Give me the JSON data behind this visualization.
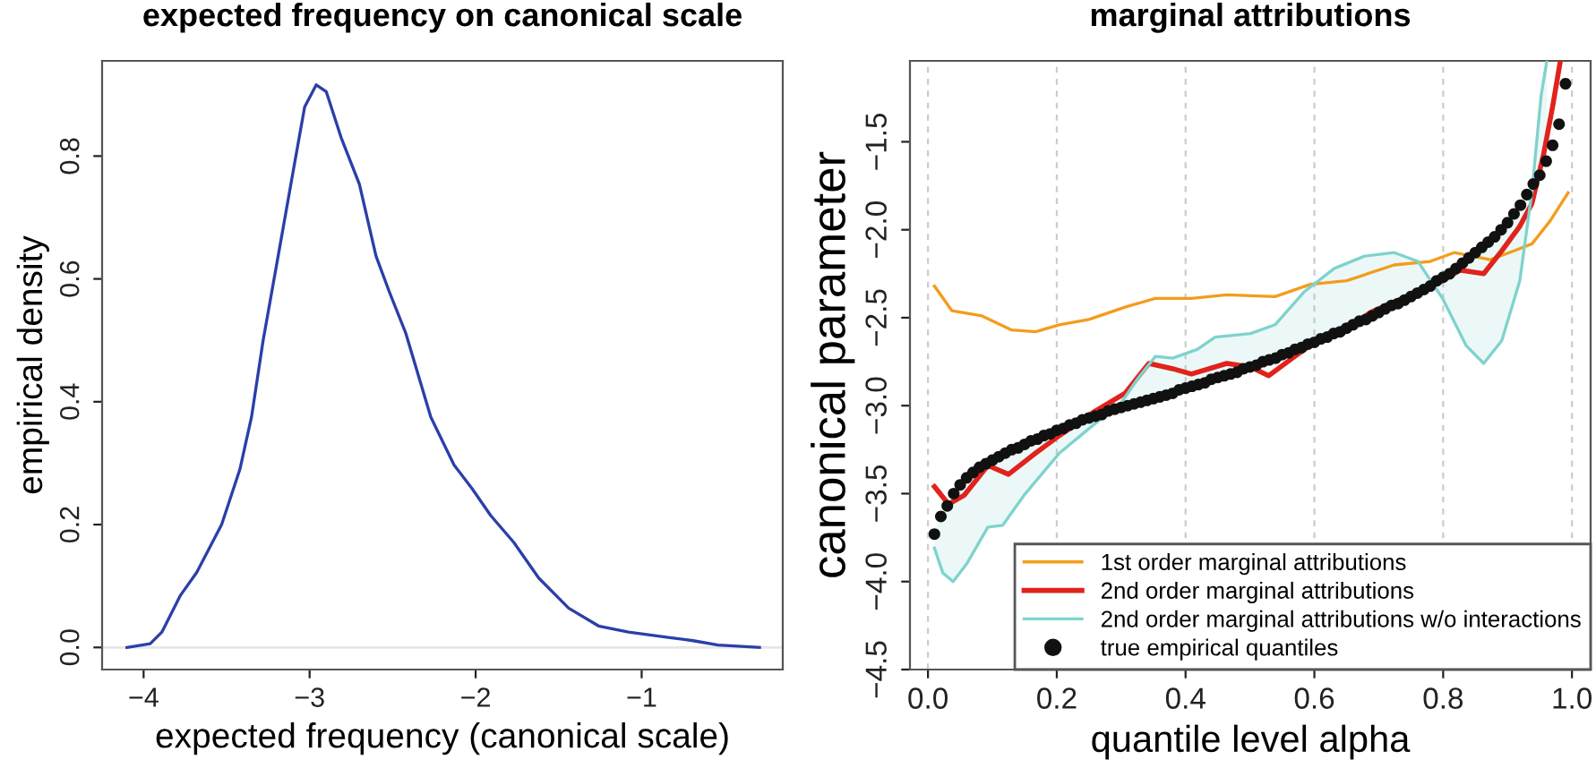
{
  "chart_data": [
    {
      "type": "line",
      "title": "expected frequency on canonical scale",
      "xlabel": "expected frequency (canonical scale)",
      "ylabel": "empirical density",
      "color": "#2b3fa8",
      "x": [
        -4.1,
        -3.96,
        -3.89,
        -3.78,
        -3.68,
        -3.53,
        -3.42,
        -3.35,
        -3.28,
        -3.17,
        -3.1,
        -3.03,
        -2.96,
        -2.9,
        -2.81,
        -2.7,
        -2.6,
        -2.52,
        -2.42,
        -2.27,
        -2.13,
        -2.02,
        -1.91,
        -1.77,
        -1.62,
        -1.44,
        -1.26,
        -1.08,
        -0.83,
        -0.69,
        -0.54,
        -0.29
      ],
      "values": [
        0,
        0.006,
        0.025,
        0.084,
        0.122,
        0.2,
        0.29,
        0.375,
        0.5,
        0.667,
        0.774,
        0.88,
        0.916,
        0.905,
        0.83,
        0.754,
        0.637,
        0.579,
        0.511,
        0.375,
        0.297,
        0.258,
        0.215,
        0.171,
        0.113,
        0.064,
        0.035,
        0.025,
        0.016,
        0.011,
        0.004,
        0
      ],
      "xlim": [
        -4.25,
        -0.15
      ],
      "xticks": [
        {
          "value": -4,
          "label": "−4"
        },
        {
          "value": -3,
          "label": "−3"
        },
        {
          "value": -2,
          "label": "−2"
        },
        {
          "value": -1,
          "label": "−1"
        }
      ],
      "ylim": [
        -0.036,
        0.955
      ],
      "yticks": [
        {
          "value": 0,
          "label": "0.0"
        },
        0.2,
        0.4,
        0.6,
        0.8
      ],
      "ref_lines": [
        {
          "axis": "y",
          "value": 0,
          "color": "#e6e6e6"
        }
      ],
      "grid": false,
      "legend": false
    },
    {
      "type": "line",
      "title": "marginal attributions",
      "xlabel": "quantile level alpha",
      "ylabel": "canonical parameter",
      "xlim": [
        -0.028,
        1.029
      ],
      "xticks": [
        {
          "value": 0,
          "label": "0.0"
        },
        0.2,
        0.4,
        0.6,
        0.8,
        {
          "value": 1,
          "label": "1.0"
        }
      ],
      "ylim": [
        -4.5,
        -1.04
      ],
      "yticks": [
        {
          "value": -4.5,
          "label": "−4.5"
        },
        {
          "value": -4,
          "label": "−4.0"
        },
        {
          "value": -3.5,
          "label": "−3.5"
        },
        {
          "value": -3,
          "label": "−3.0"
        },
        {
          "value": -2.5,
          "label": "−2.5"
        },
        {
          "value": -2,
          "label": "−2.0"
        },
        {
          "value": -1.5,
          "label": "−1.5"
        }
      ],
      "grid": "x",
      "legend": "bottom right",
      "series": [
        {
          "name": "1st order marginal attributions",
          "type": "line",
          "color": "#f39c1c",
          "x": [
            0.01,
            0.037,
            0.084,
            0.13,
            0.167,
            0.204,
            0.25,
            0.306,
            0.353,
            0.409,
            0.464,
            0.539,
            0.594,
            0.65,
            0.724,
            0.78,
            0.817,
            0.873,
            0.91,
            0.938,
            0.966,
            0.994
          ],
          "values": [
            -2.32,
            -2.46,
            -2.49,
            -2.57,
            -2.58,
            -2.54,
            -2.51,
            -2.44,
            -2.39,
            -2.39,
            -2.37,
            -2.38,
            -2.31,
            -2.29,
            -2.2,
            -2.18,
            -2.13,
            -2.17,
            -2.12,
            -2.08,
            -1.95,
            -1.79
          ]
        },
        {
          "name": "2nd order marginal attributions",
          "type": "line",
          "color": "#e0231c",
          "x": [
            0.01,
            0.032,
            0.056,
            0.093,
            0.125,
            0.167,
            0.204,
            0.26,
            0.306,
            0.343,
            0.38,
            0.409,
            0.464,
            0.501,
            0.529,
            0.566,
            0.604,
            0.65,
            0.687,
            0.724,
            0.761,
            0.799,
            0.826,
            0.863,
            0.891,
            0.919,
            0.938,
            0.956,
            0.97,
            0.982
          ],
          "values": [
            -3.46,
            -3.56,
            -3.51,
            -3.34,
            -3.39,
            -3.27,
            -3.17,
            -3.03,
            -2.93,
            -2.76,
            -2.79,
            -2.82,
            -2.76,
            -2.78,
            -2.83,
            -2.73,
            -2.63,
            -2.57,
            -2.47,
            -2.41,
            -2.35,
            -2.29,
            -2.23,
            -2.25,
            -2.12,
            -1.98,
            -1.85,
            -1.57,
            -1.3,
            -1.04
          ]
        },
        {
          "name": "2nd order marginal attributions w/o interactions",
          "type": "line",
          "color": "#7fd3cc",
          "x": [
            0.01,
            0.023,
            0.039,
            0.06,
            0.093,
            0.116,
            0.149,
            0.204,
            0.26,
            0.297,
            0.325,
            0.353,
            0.38,
            0.418,
            0.446,
            0.501,
            0.539,
            0.585,
            0.631,
            0.678,
            0.724,
            0.761,
            0.799,
            0.836,
            0.863,
            0.891,
            0.919,
            0.938,
            0.952,
            0.961
          ],
          "values": [
            -3.81,
            -3.95,
            -4.0,
            -3.9,
            -3.69,
            -3.68,
            -3.51,
            -3.27,
            -3.1,
            -3.0,
            -2.85,
            -2.72,
            -2.73,
            -2.68,
            -2.61,
            -2.59,
            -2.54,
            -2.35,
            -2.22,
            -2.15,
            -2.13,
            -2.18,
            -2.39,
            -2.66,
            -2.76,
            -2.63,
            -2.29,
            -1.78,
            -1.24,
            -1.04
          ],
          "lower": [
            -3.81,
            -3.95,
            -4.0,
            -3.9,
            -3.69,
            -3.68,
            -3.51,
            -3.27,
            -3.1,
            -3.0,
            -2.85,
            -2.72,
            -2.73,
            -2.68,
            -2.61,
            -2.59,
            -2.54,
            -2.35,
            -2.22,
            -2.15,
            -2.13,
            -2.18,
            -2.39,
            -2.66,
            -2.76,
            -2.63,
            -2.29,
            -1.78,
            -1.24,
            -1.04
          ],
          "upper": [
            -3.73,
            -3.61,
            -3.51,
            -3.41,
            -3.32,
            -3.28,
            -3.22,
            -3.14,
            -3.06,
            -3.01,
            -2.99,
            -2.96,
            -2.93,
            -2.88,
            -2.84,
            -2.78,
            -2.73,
            -2.66,
            -2.59,
            -2.51,
            -2.42,
            -2.36,
            -2.27,
            -2.16,
            -2.09,
            -2.0,
            -1.87,
            -1.76,
            -1.7,
            -1.61
          ]
        },
        {
          "name": "true empirical quantiles",
          "type": "scatter",
          "color": "#111111",
          "marker": "circle",
          "x": [
            0.01,
            0.02,
            0.03,
            0.04,
            0.05,
            0.06,
            0.07,
            0.08,
            0.09,
            0.1,
            0.11,
            0.12,
            0.13,
            0.14,
            0.15,
            0.16,
            0.17,
            0.18,
            0.19,
            0.2,
            0.21,
            0.22,
            0.23,
            0.24,
            0.25,
            0.26,
            0.27,
            0.28,
            0.29,
            0.3,
            0.31,
            0.32,
            0.33,
            0.34,
            0.35,
            0.36,
            0.37,
            0.38,
            0.39,
            0.4,
            0.41,
            0.42,
            0.43,
            0.44,
            0.45,
            0.46,
            0.47,
            0.48,
            0.49,
            0.5,
            0.51,
            0.52,
            0.53,
            0.54,
            0.55,
            0.56,
            0.57,
            0.58,
            0.59,
            0.6,
            0.61,
            0.62,
            0.63,
            0.64,
            0.65,
            0.66,
            0.67,
            0.68,
            0.69,
            0.7,
            0.71,
            0.72,
            0.73,
            0.74,
            0.75,
            0.76,
            0.77,
            0.78,
            0.79,
            0.8,
            0.81,
            0.82,
            0.83,
            0.84,
            0.85,
            0.86,
            0.87,
            0.88,
            0.89,
            0.9,
            0.91,
            0.92,
            0.93,
            0.94,
            0.95,
            0.96,
            0.97,
            0.98,
            0.99
          ],
          "values": [
            -3.73,
            -3.63,
            -3.57,
            -3.5,
            -3.45,
            -3.41,
            -3.38,
            -3.35,
            -3.33,
            -3.31,
            -3.29,
            -3.27,
            -3.25,
            -3.24,
            -3.22,
            -3.2,
            -3.19,
            -3.17,
            -3.16,
            -3.14,
            -3.13,
            -3.11,
            -3.1,
            -3.08,
            -3.07,
            -3.06,
            -3.05,
            -3.03,
            -3.02,
            -3.01,
            -3.0,
            -2.99,
            -2.98,
            -2.97,
            -2.96,
            -2.95,
            -2.94,
            -2.93,
            -2.91,
            -2.9,
            -2.89,
            -2.88,
            -2.87,
            -2.85,
            -2.84,
            -2.83,
            -2.82,
            -2.81,
            -2.79,
            -2.78,
            -2.77,
            -2.75,
            -2.74,
            -2.73,
            -2.71,
            -2.7,
            -2.68,
            -2.67,
            -2.65,
            -2.64,
            -2.62,
            -2.61,
            -2.59,
            -2.58,
            -2.56,
            -2.54,
            -2.52,
            -2.51,
            -2.49,
            -2.47,
            -2.45,
            -2.43,
            -2.42,
            -2.4,
            -2.38,
            -2.36,
            -2.34,
            -2.32,
            -2.29,
            -2.27,
            -2.25,
            -2.22,
            -2.19,
            -2.16,
            -2.13,
            -2.1,
            -2.07,
            -2.04,
            -2.0,
            -1.96,
            -1.91,
            -1.86,
            -1.8,
            -1.74,
            -1.69,
            -1.61,
            -1.52,
            -1.4,
            -1.17
          ]
        }
      ]
    }
  ]
}
